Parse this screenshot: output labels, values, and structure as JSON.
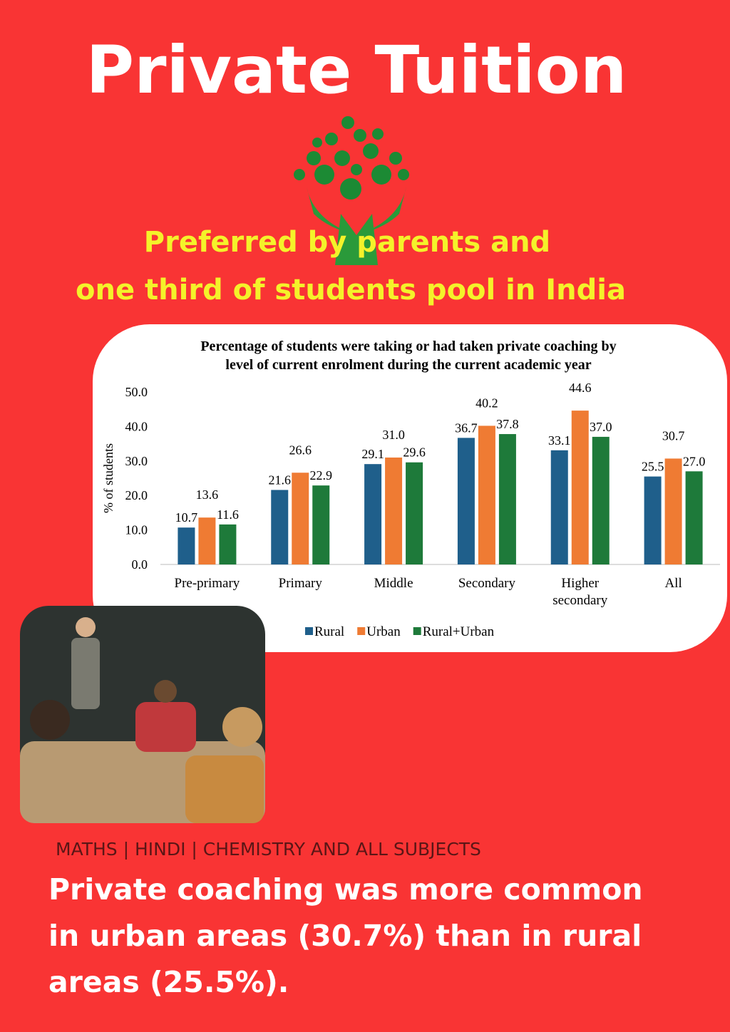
{
  "title": "Private Tuition",
  "tagline": [
    "Preferred by parents and",
    "one third of students pool in India"
  ],
  "subjects": "MATHS | HINDI | CHEMISTRY AND ALL SUBJECTS",
  "summary": [
    "Private coaching was more common",
    "in urban areas (30.7%) than in rural",
    "areas (25.5%)."
  ],
  "chart_data": {
    "type": "bar",
    "title": "Percentage of students were taking or had taken private coaching by level of current enrolment during the current academic year",
    "y_label": "% of students",
    "categories": [
      "Pre-primary",
      "Primary",
      "Middle",
      "Secondary",
      "Higher secondary",
      "All"
    ],
    "series": [
      {
        "name": "Rural",
        "color": "#1f5f8b",
        "values": [
          10.7,
          21.6,
          29.1,
          36.7,
          33.1,
          25.5
        ],
        "value_labels": [
          "10.7",
          "21.6",
          "29.1",
          "36.7",
          "33.1",
          "25.5"
        ]
      },
      {
        "name": "Urban",
        "color": "#ef7b33",
        "values": [
          13.6,
          26.6,
          31.0,
          40.2,
          44.6,
          30.7
        ],
        "value_labels": [
          "13.6",
          "26.6",
          "31.0",
          "40.2",
          "44.6",
          "30.7"
        ]
      },
      {
        "name": "Rural+Urban",
        "color": "#1e7a3a",
        "values": [
          11.6,
          22.9,
          29.6,
          37.8,
          37.0,
          27.0
        ],
        "value_labels": [
          "11.6",
          "22.9",
          "29.6",
          "37.8",
          "37.0",
          "27.0"
        ]
      }
    ],
    "ylim": [
      0,
      50
    ],
    "yticks": [
      {
        "value": 0,
        "label": "0.0"
      },
      {
        "value": 10,
        "label": "10.0"
      },
      {
        "value": 20,
        "label": "20.0"
      },
      {
        "value": 30,
        "label": "30.0"
      },
      {
        "value": 40,
        "label": "40.0"
      },
      {
        "value": 50,
        "label": "50.0"
      }
    ],
    "legend": "bottom"
  }
}
